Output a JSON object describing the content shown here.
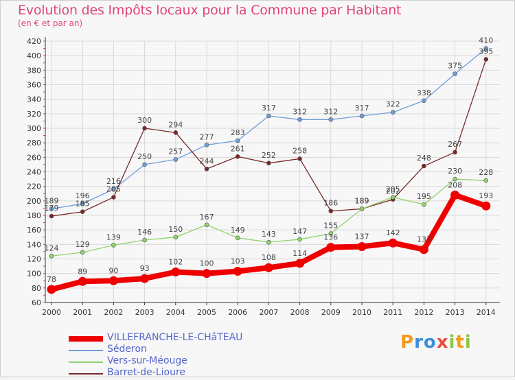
{
  "header": {
    "title": "Evolution des Impôts locaux pour la Commune par Habitant",
    "subtitle": "(en € et par an)"
  },
  "brand": {
    "text": "Proxiti"
  },
  "colors": {
    "axis": "#333333",
    "grid": "#d8d8d8",
    "title": "#e0457b",
    "legend_text": "#5566cc"
  },
  "chart_data": {
    "type": "line",
    "title": "Evolution des Impôts locaux pour la Commune par Habitant",
    "subtitle": "(en € et par an)",
    "x": [
      "2000",
      "2001",
      "2002",
      "2003",
      "2004",
      "2005",
      "2006",
      "2007",
      "2008",
      "2009",
      "2010",
      "2011",
      "2012",
      "2013",
      "2014"
    ],
    "ylim": [
      60,
      420
    ],
    "yticks": [
      60,
      80,
      100,
      120,
      140,
      160,
      180,
      200,
      220,
      240,
      260,
      280,
      300,
      320,
      340,
      360,
      380,
      400,
      420
    ],
    "grid": true,
    "legend_position": "bottom-left",
    "series": [
      {
        "name": "VILLEFRANCHE-LE-CHâTEAU",
        "color": "#ee0000",
        "values": [
          78,
          89,
          90,
          93,
          102,
          100,
          103,
          108,
          114,
          136,
          137,
          142,
          133,
          208,
          193
        ],
        "labels": [
          "78",
          "89",
          "90",
          "93",
          "102",
          "100",
          "103",
          "108",
          "114",
          "136",
          "137",
          "142",
          "133",
          "208",
          "193"
        ]
      },
      {
        "name": "Séderon",
        "color": "#6f9ed8",
        "values": [
          189,
          196,
          216,
          250,
          257,
          277,
          283,
          317,
          312,
          312,
          317,
          322,
          338,
          375,
          410
        ],
        "labels": [
          "189",
          "196",
          "216",
          "250",
          "257",
          "277",
          "283",
          "317",
          "312",
          "312",
          "317",
          "322",
          "338",
          "375",
          "410"
        ]
      },
      {
        "name": "Vers-sur-Méouge",
        "color": "#8fd36a",
        "values": [
          124,
          129,
          139,
          146,
          150,
          167,
          149,
          143,
          147,
          155,
          189,
          205,
          195,
          230,
          228
        ],
        "labels": [
          "124",
          "129",
          "139",
          "146",
          "150",
          "167",
          "149",
          "143",
          "147",
          "155",
          "189",
          "205",
          "195",
          "230",
          "228"
        ]
      },
      {
        "name": "Barret-de-Lioure",
        "color": "#7a2727",
        "values": [
          179,
          185,
          205,
          300,
          294,
          244,
          261,
          252,
          258,
          186,
          189,
          202,
          248,
          267,
          395
        ],
        "labels": [
          "179",
          "185",
          "205",
          "300",
          "294",
          "244",
          "261",
          "252",
          "258",
          "186",
          "189",
          "202",
          "248",
          "267",
          "395"
        ]
      }
    ]
  }
}
